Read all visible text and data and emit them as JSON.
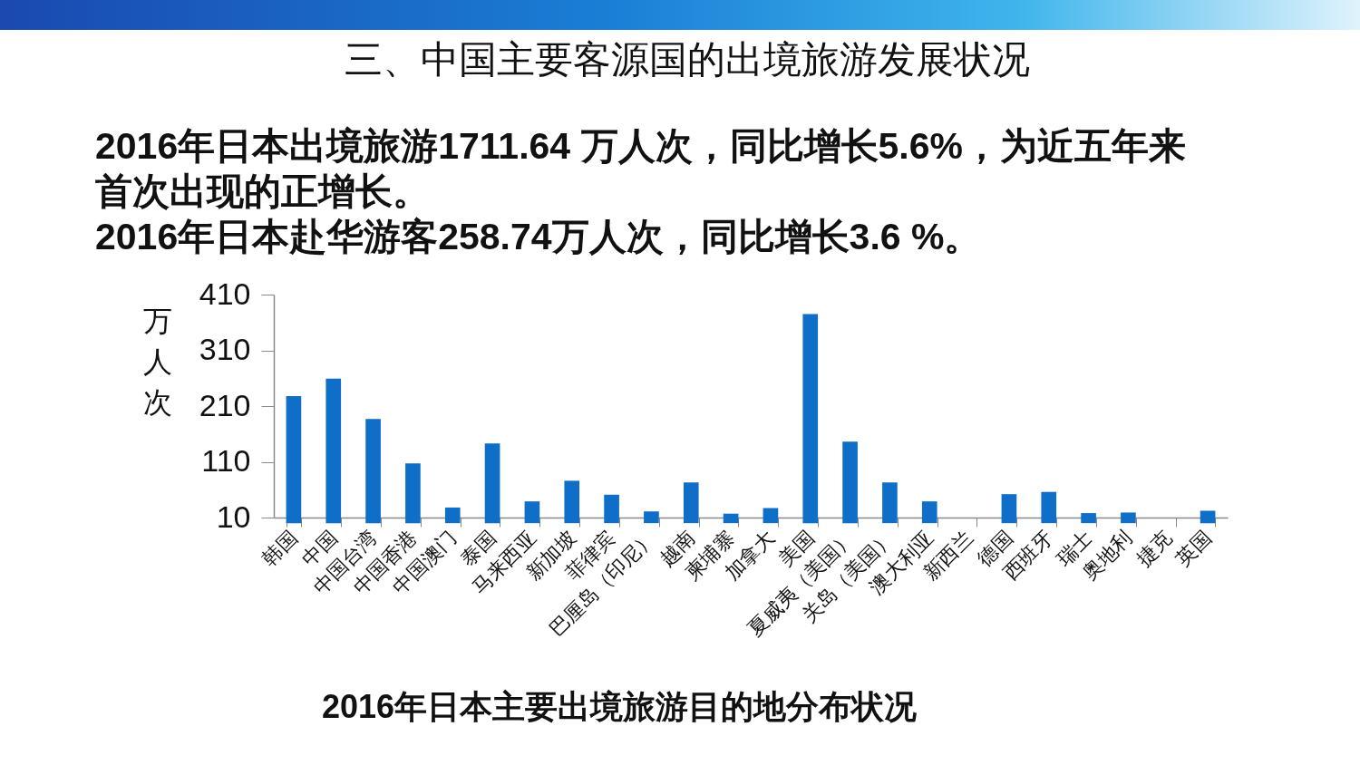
{
  "chart_data": {
    "type": "bar",
    "title": "三、中国主要客源国的出境旅游发展状况",
    "annotations": [
      "2016年日本出境旅游1711.64 万人次，同比增长5.6%，为近五年来首次出现的正增长。",
      "2016年日本赴华游客258.74万人次，同比增长3.6 %。",
      "2016年日本主要出境旅游目的地分布状况"
    ],
    "ylabel": "万人次",
    "categories": [
      "韩国",
      "中国",
      "中国台湾",
      "中国香港",
      "中国澳门",
      "泰国",
      "马来西亚",
      "新加坡",
      "菲律宾",
      "巴厘岛（印尼）",
      "越南",
      "柬埔寨",
      "加拿大",
      "美国",
      "夏威夷（美国）",
      "关岛（美国）",
      "澳大利亚",
      "新西兰",
      "德国",
      "西班牙",
      "瑞士",
      "奥地利",
      "捷克",
      "英国"
    ],
    "values": [
      228,
      259,
      187,
      107,
      28,
      143,
      39,
      76,
      51,
      21,
      73,
      17,
      27,
      375,
      146,
      73,
      39,
      null,
      52,
      56,
      18,
      19,
      null,
      22
    ],
    "color": "#0f6ec7",
    "ylim": [
      10,
      410
    ],
    "yticks": [
      10,
      110,
      210,
      310,
      410
    ],
    "grid": false
  }
}
